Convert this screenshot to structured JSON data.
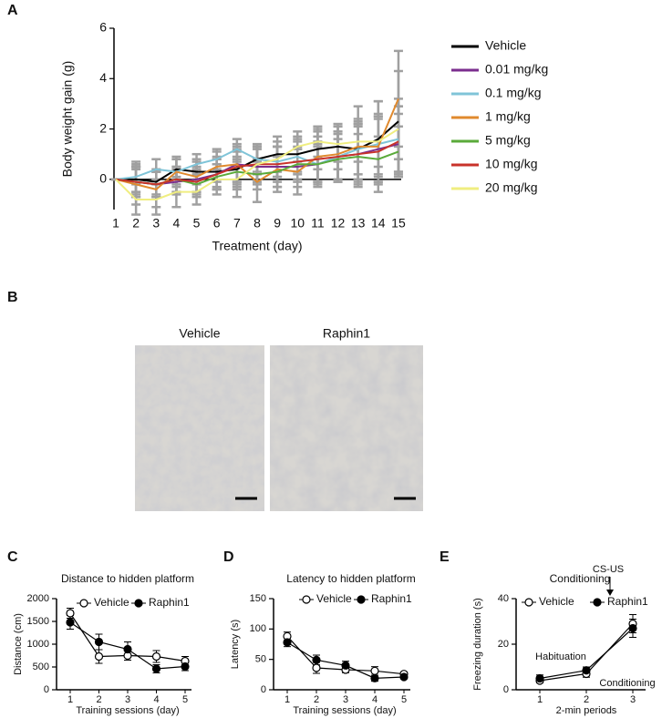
{
  "chart_data": [
    {
      "type": "line",
      "label": "A",
      "xlabel": "Treatment (day)",
      "ylabel": "Body weight gain (g)",
      "categories": [
        "1",
        "2",
        "3",
        "4",
        "5",
        "6",
        "7",
        "8",
        "9",
        "10",
        "11",
        "12",
        "13",
        "14",
        "15"
      ],
      "ylim": [
        -1.2,
        6
      ],
      "yticks": [
        0,
        2,
        4,
        6
      ],
      "error_color": "#a0a0a0",
      "series": [
        {
          "name": "Vehicle",
          "color": "#000000",
          "values": [
            0,
            0,
            -0.1,
            0.4,
            0.3,
            0.3,
            0.4,
            0.8,
            1.0,
            1.0,
            1.2,
            1.3,
            1.2,
            1.6,
            2.3
          ],
          "errors": [
            0,
            0.5,
            0.5,
            0.4,
            0.5,
            0.6,
            0.8,
            0.6,
            0.7,
            0.7,
            0.8,
            0.9,
            1.2,
            1.5,
            2.0
          ]
        },
        {
          "name": "0.01 mg/kg",
          "color": "#7b2d8e",
          "values": [
            0,
            -0.1,
            -0.2,
            -0.1,
            0,
            0.2,
            0.6,
            0.5,
            0.5,
            0.5,
            0.6,
            0.9,
            1.0,
            1.2,
            1.4
          ],
          "errors": [
            0,
            0.6,
            0.5,
            0.5,
            0.5,
            0.6,
            0.7,
            0.7,
            0.8,
            0.8,
            0.9,
            1.0,
            1.2,
            1.3,
            1.2
          ]
        },
        {
          "name": "0.1 mg/kg",
          "color": "#7fc4d8",
          "values": [
            0,
            0.1,
            0.4,
            0.3,
            0.6,
            0.8,
            1.2,
            0.8,
            0.7,
            0.9,
            0.6,
            0.9,
            1.2,
            1.4,
            1.6
          ],
          "errors": [
            0,
            0.6,
            0.4,
            0.5,
            0.4,
            0.4,
            0.4,
            0.5,
            0.6,
            0.7,
            0.8,
            0.9,
            1.0,
            1.2,
            1.3
          ]
        },
        {
          "name": "1 mg/kg",
          "color": "#e08a2e",
          "values": [
            0,
            -0.2,
            -0.4,
            0.3,
            0.1,
            0.5,
            0.6,
            -0.1,
            0.4,
            0.3,
            0.9,
            1.0,
            1.3,
            1.3,
            3.2
          ],
          "errors": [
            0,
            0.8,
            0.7,
            0.6,
            0.6,
            0.6,
            0.8,
            0.8,
            0.9,
            0.9,
            1.0,
            1.1,
            1.6,
            1.8,
            1.9
          ]
        },
        {
          "name": "5 mg/kg",
          "color": "#5aaa3a",
          "values": [
            0,
            -0.1,
            -0.2,
            0,
            -0.2,
            0.1,
            0.3,
            0.2,
            0.3,
            0.6,
            0.6,
            0.8,
            0.9,
            0.8,
            1.1
          ],
          "errors": [
            0,
            0.5,
            0.5,
            0.5,
            0.5,
            0.5,
            0.6,
            0.6,
            0.6,
            0.6,
            0.7,
            0.8,
            0.9,
            0.9,
            1.0
          ]
        },
        {
          "name": "10 mg/kg",
          "color": "#c8322a",
          "values": [
            0,
            -0.1,
            -0.2,
            0,
            -0.1,
            0.2,
            0.5,
            0.6,
            0.6,
            0.7,
            0.8,
            0.9,
            1.0,
            1.1,
            1.5
          ],
          "errors": [
            0,
            0.6,
            0.5,
            0.5,
            0.5,
            0.6,
            0.6,
            0.7,
            0.7,
            0.8,
            0.9,
            1.0,
            1.1,
            1.3,
            1.4
          ]
        },
        {
          "name": "20 mg/kg",
          "color": "#f0ee80",
          "values": [
            0,
            -0.8,
            -0.8,
            -0.5,
            -0.5,
            0,
            0,
            0.6,
            0.8,
            1.3,
            1.5,
            1.4,
            1.5,
            1.5,
            2.0
          ],
          "errors": [
            0,
            0.6,
            0.6,
            0.6,
            0.5,
            0.6,
            0.7,
            0.7,
            0.7,
            0.6,
            0.6,
            0.7,
            0.8,
            1.0,
            1.2
          ]
        }
      ]
    },
    {
      "type": "image",
      "label": "B",
      "titles": [
        "Vehicle",
        "Raphin1"
      ]
    },
    {
      "type": "line",
      "label": "C",
      "title": "Distance to hidden platform",
      "xlabel": "Training sessions (day)",
      "ylabel": "Distance (cm)",
      "categories": [
        "1",
        "2",
        "3",
        "4",
        "5"
      ],
      "ylim": [
        0,
        2000
      ],
      "yticks": [
        0,
        500,
        1000,
        1500,
        2000
      ],
      "series": [
        {
          "name": "Vehicle",
          "color": "#000000",
          "marker": "open",
          "values": [
            1680,
            730,
            750,
            730,
            630
          ],
          "errors": [
            110,
            150,
            100,
            130,
            100
          ]
        },
        {
          "name": "Raphin1",
          "color": "#000000",
          "marker": "filled",
          "values": [
            1480,
            1050,
            890,
            460,
            510
          ],
          "errors": [
            150,
            170,
            160,
            90,
            90
          ]
        }
      ]
    },
    {
      "type": "line",
      "label": "D",
      "title": "Latency to hidden platform",
      "xlabel": "Training sessions (day)",
      "ylabel": "Latency (s)",
      "categories": [
        "1",
        "2",
        "3",
        "4",
        "5"
      ],
      "ylim": [
        0,
        150
      ],
      "yticks": [
        0,
        50,
        100,
        150
      ],
      "series": [
        {
          "name": "Vehicle",
          "color": "#000000",
          "marker": "open",
          "values": [
            88,
            36,
            33,
            31,
            26
          ],
          "errors": [
            7,
            9,
            5,
            7,
            3
          ]
        },
        {
          "name": "Raphin1",
          "color": "#000000",
          "marker": "filled",
          "values": [
            78,
            49,
            40,
            19,
            21
          ],
          "errors": [
            7,
            8,
            7,
            5,
            3
          ]
        }
      ]
    },
    {
      "type": "line",
      "label": "E",
      "title": "Conditioning",
      "xlabel": "2-min periods",
      "ylabel": "Freezing duration (s)",
      "categories": [
        "1",
        "2",
        "3"
      ],
      "ylim": [
        0,
        40
      ],
      "yticks": [
        0,
        20,
        40
      ],
      "annotations": [
        "Habituation",
        "CS-US",
        "Conditioning"
      ],
      "series": [
        {
          "name": "Vehicle",
          "color": "#000000",
          "marker": "open",
          "values": [
            4,
            7,
            29
          ],
          "errors": [
            1,
            1.5,
            4
          ]
        },
        {
          "name": "Raphin1",
          "color": "#000000",
          "marker": "filled",
          "values": [
            5,
            8.5,
            27
          ],
          "errors": [
            1.5,
            1.5,
            4
          ]
        }
      ]
    }
  ]
}
